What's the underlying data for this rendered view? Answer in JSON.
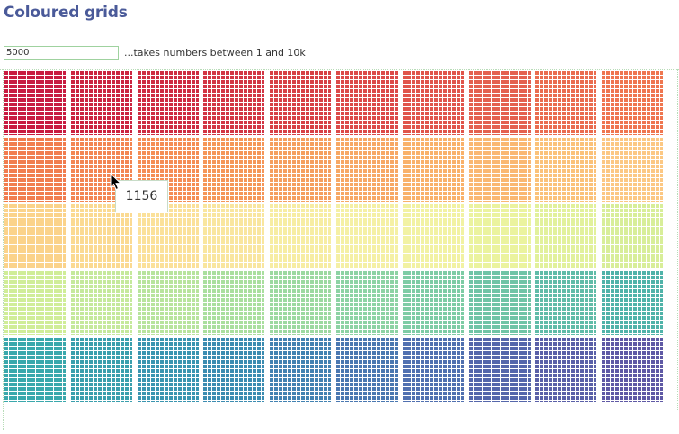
{
  "page": {
    "title": "Coloured grids"
  },
  "controls": {
    "input_value": "5000",
    "hint": "...takes numbers between 1 and 10k"
  },
  "tooltip": {
    "text": "1156"
  },
  "grid": {
    "rows": 5,
    "cols": 10,
    "colors": [
      [
        "#c81c41",
        "#cb2440",
        "#ce2c42",
        "#d23544",
        "#d74045",
        "#dc4a49",
        "#e0554b",
        "#e4604f",
        "#ea6c4f",
        "#ef7650"
      ],
      [
        "#f17d4f",
        "#f38652",
        "#f58e55",
        "#f59658",
        "#f59f5f",
        "#f7a865",
        "#f9b26b",
        "#fab873",
        "#fbc27a",
        "#fcc884"
      ],
      [
        "#fbd38b",
        "#fbda92",
        "#fbe19a",
        "#f9e69f",
        "#f7eda3",
        "#f5f0a5",
        "#f2f2a3",
        "#ebf39f",
        "#e2f19c",
        "#d8ee99"
      ],
      [
        "#d0ed98",
        "#c5e99c",
        "#b8e49d",
        "#aadf9e",
        "#9cd9a1",
        "#8dd3a4",
        "#7ecca5",
        "#6fc4a6",
        "#60bca8",
        "#4fb3a9"
      ],
      [
        "#3aa8ac",
        "#3a9fad",
        "#3a95b0",
        "#3c8cb1",
        "#4182b2",
        "#4a78b1",
        "#5070b0",
        "#5567ab",
        "#5a60a8",
        "#5f59a5"
      ]
    ]
  }
}
